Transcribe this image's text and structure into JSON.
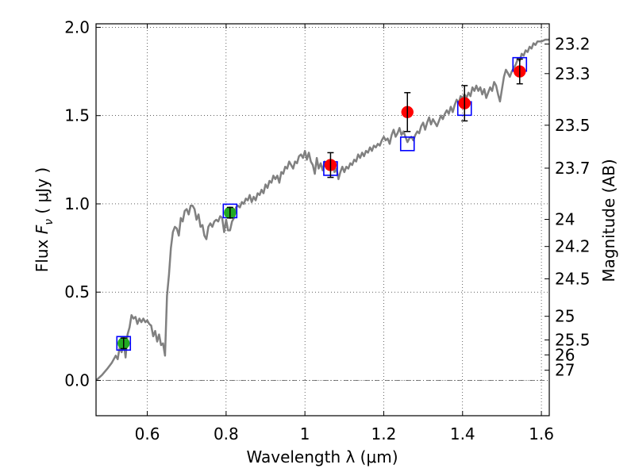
{
  "chart_data": {
    "type": "scatter",
    "xlabel": "Wavelength  λ (μm)",
    "ylabel": "Flux  F_ν ( μJy )",
    "ylabel_parts": {
      "pre": "Flux  ",
      "var": "F",
      "sub": "ν",
      "post": "  ( μJy )"
    },
    "y2label": "Magnitude (AB)",
    "xlim": [
      0.47,
      1.62
    ],
    "ylim": [
      -0.2,
      2.02
    ],
    "grid": true,
    "x_ticks": [
      {
        "value": 0.6,
        "label": "0.6"
      },
      {
        "value": 0.8,
        "label": "0.8"
      },
      {
        "value": 1.0,
        "label": "1"
      },
      {
        "value": 1.2,
        "label": "1.2"
      },
      {
        "value": 1.4,
        "label": "1.4"
      },
      {
        "value": 1.6,
        "label": "1.6"
      }
    ],
    "y_ticks": [
      {
        "value": 0.0,
        "label": "0.0"
      },
      {
        "value": 0.5,
        "label": "0.5"
      },
      {
        "value": 1.0,
        "label": "1.0"
      },
      {
        "value": 1.5,
        "label": "1.5"
      },
      {
        "value": 2.0,
        "label": "2.0"
      }
    ],
    "magnitude_ticks": [
      {
        "value": 23.2,
        "label": "23.2"
      },
      {
        "value": 23.3,
        "label": "23.3"
      },
      {
        "value": 23.5,
        "label": "23.5"
      },
      {
        "value": 23.7,
        "label": "23.7"
      },
      {
        "value": 24.0,
        "label": "24"
      },
      {
        "value": 24.2,
        "label": "24.2"
      },
      {
        "value": 24.5,
        "label": "24.5"
      },
      {
        "value": 25.0,
        "label": "25"
      },
      {
        "value": 25.5,
        "label": "25.5"
      },
      {
        "value": 26.0,
        "label": "26"
      },
      {
        "value": 27.0,
        "label": "27"
      }
    ],
    "series": [
      {
        "kind": "model-spectrum",
        "color": "#808080",
        "points": [
          [
            0.47,
            0.0
          ],
          [
            0.485,
            0.03
          ],
          [
            0.5,
            0.07
          ],
          [
            0.51,
            0.1
          ],
          [
            0.52,
            0.14
          ],
          [
            0.525,
            0.12
          ],
          [
            0.53,
            0.19
          ],
          [
            0.535,
            0.16
          ],
          [
            0.54,
            0.22
          ],
          [
            0.545,
            0.13
          ],
          [
            0.55,
            0.26
          ],
          [
            0.555,
            0.3
          ],
          [
            0.56,
            0.37
          ],
          [
            0.565,
            0.35
          ],
          [
            0.57,
            0.36
          ],
          [
            0.575,
            0.32
          ],
          [
            0.58,
            0.35
          ],
          [
            0.585,
            0.33
          ],
          [
            0.59,
            0.35
          ],
          [
            0.595,
            0.33
          ],
          [
            0.6,
            0.34
          ],
          [
            0.605,
            0.32
          ],
          [
            0.61,
            0.31
          ],
          [
            0.615,
            0.25
          ],
          [
            0.62,
            0.28
          ],
          [
            0.625,
            0.22
          ],
          [
            0.63,
            0.26
          ],
          [
            0.635,
            0.2
          ],
          [
            0.64,
            0.21
          ],
          [
            0.645,
            0.14
          ],
          [
            0.65,
            0.48
          ],
          [
            0.655,
            0.6
          ],
          [
            0.66,
            0.75
          ],
          [
            0.665,
            0.84
          ],
          [
            0.67,
            0.87
          ],
          [
            0.675,
            0.86
          ],
          [
            0.68,
            0.82
          ],
          [
            0.685,
            0.92
          ],
          [
            0.69,
            0.9
          ],
          [
            0.695,
            0.96
          ],
          [
            0.7,
            0.97
          ],
          [
            0.705,
            0.94
          ],
          [
            0.71,
            0.99
          ],
          [
            0.715,
            0.99
          ],
          [
            0.72,
            0.97
          ],
          [
            0.725,
            0.91
          ],
          [
            0.73,
            0.94
          ],
          [
            0.735,
            0.87
          ],
          [
            0.74,
            0.88
          ],
          [
            0.745,
            0.82
          ],
          [
            0.75,
            0.8
          ],
          [
            0.755,
            0.87
          ],
          [
            0.76,
            0.89
          ],
          [
            0.765,
            0.87
          ],
          [
            0.77,
            0.9
          ],
          [
            0.775,
            0.91
          ],
          [
            0.78,
            0.9
          ],
          [
            0.785,
            0.93
          ],
          [
            0.79,
            0.92
          ],
          [
            0.795,
            0.84
          ],
          [
            0.8,
            0.91
          ],
          [
            0.805,
            0.85
          ],
          [
            0.81,
            0.85
          ],
          [
            0.815,
            0.9
          ],
          [
            0.82,
            0.92
          ],
          [
            0.825,
            0.98
          ],
          [
            0.83,
            0.99
          ],
          [
            0.835,
            0.98
          ],
          [
            0.84,
            1.01
          ],
          [
            0.845,
            1.0
          ],
          [
            0.85,
            1.03
          ],
          [
            0.855,
            1.02
          ],
          [
            0.86,
            1.05
          ],
          [
            0.865,
            1.01
          ],
          [
            0.87,
            1.04
          ],
          [
            0.875,
            1.02
          ],
          [
            0.88,
            1.06
          ],
          [
            0.885,
            1.05
          ],
          [
            0.89,
            1.08
          ],
          [
            0.895,
            1.06
          ],
          [
            0.9,
            1.11
          ],
          [
            0.905,
            1.09
          ],
          [
            0.91,
            1.13
          ],
          [
            0.915,
            1.12
          ],
          [
            0.92,
            1.16
          ],
          [
            0.925,
            1.14
          ],
          [
            0.93,
            1.16
          ],
          [
            0.935,
            1.12
          ],
          [
            0.94,
            1.18
          ],
          [
            0.945,
            1.17
          ],
          [
            0.95,
            1.21
          ],
          [
            0.955,
            1.2
          ],
          [
            0.96,
            1.24
          ],
          [
            0.965,
            1.22
          ],
          [
            0.97,
            1.2
          ],
          [
            0.975,
            1.24
          ],
          [
            0.98,
            1.23
          ],
          [
            0.985,
            1.27
          ],
          [
            0.99,
            1.28
          ],
          [
            0.995,
            1.26
          ],
          [
            1.0,
            1.3
          ],
          [
            1.005,
            1.25
          ],
          [
            1.01,
            1.29
          ],
          [
            1.015,
            1.24
          ],
          [
            1.02,
            1.22
          ],
          [
            1.025,
            1.17
          ],
          [
            1.03,
            1.26
          ],
          [
            1.035,
            1.2
          ],
          [
            1.04,
            1.23
          ],
          [
            1.045,
            1.19
          ],
          [
            1.05,
            1.24
          ],
          [
            1.055,
            1.2
          ],
          [
            1.06,
            1.23
          ],
          [
            1.065,
            1.21
          ],
          [
            1.07,
            1.23
          ],
          [
            1.075,
            1.18
          ],
          [
            1.08,
            1.2
          ],
          [
            1.085,
            1.14
          ],
          [
            1.09,
            1.18
          ],
          [
            1.095,
            1.21
          ],
          [
            1.1,
            1.18
          ],
          [
            1.105,
            1.21
          ],
          [
            1.11,
            1.2
          ],
          [
            1.115,
            1.23
          ],
          [
            1.12,
            1.22
          ],
          [
            1.125,
            1.25
          ],
          [
            1.13,
            1.24
          ],
          [
            1.135,
            1.28
          ],
          [
            1.14,
            1.26
          ],
          [
            1.145,
            1.29
          ],
          [
            1.15,
            1.27
          ],
          [
            1.155,
            1.3
          ],
          [
            1.16,
            1.29
          ],
          [
            1.165,
            1.32
          ],
          [
            1.17,
            1.3
          ],
          [
            1.175,
            1.33
          ],
          [
            1.18,
            1.32
          ],
          [
            1.185,
            1.34
          ],
          [
            1.19,
            1.33
          ],
          [
            1.195,
            1.36
          ],
          [
            1.2,
            1.38
          ],
          [
            1.205,
            1.36
          ],
          [
            1.21,
            1.37
          ],
          [
            1.215,
            1.34
          ],
          [
            1.22,
            1.39
          ],
          [
            1.225,
            1.42
          ],
          [
            1.23,
            1.38
          ],
          [
            1.235,
            1.4
          ],
          [
            1.24,
            1.43
          ],
          [
            1.245,
            1.39
          ],
          [
            1.25,
            1.41
          ],
          [
            1.255,
            1.38
          ],
          [
            1.26,
            1.35
          ],
          [
            1.265,
            1.37
          ],
          [
            1.27,
            1.38
          ],
          [
            1.275,
            1.36
          ],
          [
            1.28,
            1.39
          ],
          [
            1.285,
            1.41
          ],
          [
            1.29,
            1.4
          ],
          [
            1.295,
            1.44
          ],
          [
            1.3,
            1.46
          ],
          [
            1.305,
            1.42
          ],
          [
            1.31,
            1.46
          ],
          [
            1.315,
            1.49
          ],
          [
            1.32,
            1.45
          ],
          [
            1.325,
            1.48
          ],
          [
            1.33,
            1.46
          ],
          [
            1.335,
            1.44
          ],
          [
            1.34,
            1.47
          ],
          [
            1.345,
            1.5
          ],
          [
            1.35,
            1.48
          ],
          [
            1.355,
            1.51
          ],
          [
            1.36,
            1.53
          ],
          [
            1.365,
            1.51
          ],
          [
            1.37,
            1.55
          ],
          [
            1.375,
            1.52
          ],
          [
            1.38,
            1.56
          ],
          [
            1.385,
            1.59
          ],
          [
            1.39,
            1.57
          ],
          [
            1.395,
            1.61
          ],
          [
            1.4,
            1.6
          ],
          [
            1.405,
            1.62
          ],
          [
            1.41,
            1.6
          ],
          [
            1.415,
            1.63
          ],
          [
            1.42,
            1.61
          ],
          [
            1.425,
            1.66
          ],
          [
            1.43,
            1.64
          ],
          [
            1.435,
            1.67
          ],
          [
            1.44,
            1.64
          ],
          [
            1.445,
            1.66
          ],
          [
            1.45,
            1.62
          ],
          [
            1.455,
            1.65
          ],
          [
            1.46,
            1.6
          ],
          [
            1.465,
            1.63
          ],
          [
            1.47,
            1.66
          ],
          [
            1.475,
            1.64
          ],
          [
            1.48,
            1.69
          ],
          [
            1.485,
            1.67
          ],
          [
            1.49,
            1.62
          ],
          [
            1.495,
            1.58
          ],
          [
            1.5,
            1.65
          ],
          [
            1.505,
            1.72
          ],
          [
            1.51,
            1.76
          ],
          [
            1.515,
            1.74
          ],
          [
            1.52,
            1.72
          ],
          [
            1.525,
            1.75
          ],
          [
            1.53,
            1.77
          ],
          [
            1.535,
            1.79
          ],
          [
            1.54,
            1.82
          ],
          [
            1.545,
            1.81
          ],
          [
            1.55,
            1.85
          ],
          [
            1.555,
            1.84
          ],
          [
            1.56,
            1.87
          ],
          [
            1.565,
            1.86
          ],
          [
            1.57,
            1.89
          ],
          [
            1.575,
            1.88
          ],
          [
            1.58,
            1.91
          ],
          [
            1.585,
            1.9
          ],
          [
            1.59,
            1.92
          ],
          [
            1.6,
            1.92
          ],
          [
            1.61,
            1.93
          ],
          [
            1.62,
            1.93
          ]
        ]
      },
      {
        "kind": "model-photometry",
        "marker": "open-square",
        "color": "#0000ff",
        "points": [
          [
            0.54,
            0.21
          ],
          [
            0.81,
            0.96
          ],
          [
            1.065,
            1.2
          ],
          [
            1.26,
            1.34
          ],
          [
            1.405,
            1.54
          ],
          [
            1.545,
            1.79
          ]
        ]
      },
      {
        "kind": "observed-photometry",
        "marker": "filled-circle",
        "points": [
          {
            "x": 0.54,
            "y": 0.21,
            "err": 0.03,
            "color": "#22aa22"
          },
          {
            "x": 0.81,
            "y": 0.95,
            "err": 0.03,
            "color": "#22aa22"
          },
          {
            "x": 1.065,
            "y": 1.22,
            "err": 0.07,
            "color": "#ff0000"
          },
          {
            "x": 1.26,
            "y": 1.52,
            "err": 0.11,
            "color": "#ff0000"
          },
          {
            "x": 1.405,
            "y": 1.57,
            "err": 0.1,
            "color": "#ff0000"
          },
          {
            "x": 1.545,
            "y": 1.75,
            "err": 0.07,
            "color": "#ff0000"
          }
        ]
      }
    ],
    "zero_line": {
      "value": 0.0,
      "style": "dash-dot",
      "color": "#555555"
    }
  }
}
